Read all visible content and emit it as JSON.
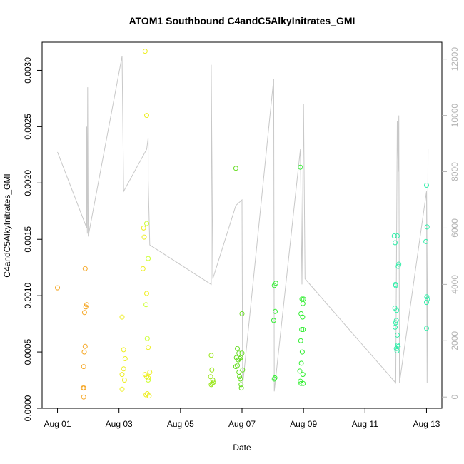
{
  "chart_data": {
    "type": "scatter",
    "title": "ATOM1 Southbound C4andC5AlkyInitrates_GMI",
    "xlabel": "Date",
    "ylabel": "C4andC5AlkyInitrates_GMI",
    "x_ticks": [
      "Aug 01",
      "Aug 03",
      "Aug 05",
      "Aug 07",
      "Aug 09",
      "Aug 11",
      "Aug 13"
    ],
    "x_tick_day_offsets": [
      0,
      2,
      4,
      6,
      8,
      10,
      12
    ],
    "xlim_days_from_aug01": [
      -0.5,
      12.5
    ],
    "ylim": [
      0,
      0.00325
    ],
    "y_ticks": [
      "0.0000",
      "0.0005",
      "0.0010",
      "0.0015",
      "0.0020",
      "0.0025",
      "0.0030"
    ],
    "y_tick_values": [
      0,
      0.0005,
      0.001,
      0.0015,
      0.002,
      0.0025,
      0.003
    ],
    "y2lim": [
      -400,
      12600
    ],
    "y2_ticks": [
      "0",
      "2000",
      "4000",
      "6000",
      "8000",
      "10000",
      "12000"
    ],
    "y2_tick_values": [
      0,
      2000,
      4000,
      6000,
      8000,
      10000,
      12000
    ],
    "scatter_series": [
      {
        "color": "#f5a623",
        "points": [
          [
            0.0,
            0.00107
          ],
          [
            0.9,
            0.00124
          ],
          [
            0.95,
            0.00092
          ],
          [
            0.92,
            0.0009
          ],
          [
            0.88,
            0.00085
          ],
          [
            0.9,
            0.00055
          ],
          [
            0.87,
            0.0005
          ],
          [
            0.85,
            0.00037
          ],
          [
            0.83,
            0.00018
          ],
          [
            0.86,
            0.00018
          ],
          [
            0.85,
            0.0001
          ]
        ]
      },
      {
        "color": "#eeee22",
        "points": [
          [
            2.85,
            0.00317
          ],
          [
            2.9,
            0.0026
          ],
          [
            2.8,
            0.0016
          ],
          [
            2.82,
            0.00152
          ],
          [
            2.78,
            0.00124
          ],
          [
            2.9,
            0.00102
          ],
          [
            2.95,
            0.00054
          ],
          [
            2.1,
            0.00081
          ],
          [
            2.15,
            0.00052
          ],
          [
            2.2,
            0.00044
          ],
          [
            2.15,
            0.00035
          ],
          [
            2.1,
            0.0003
          ],
          [
            2.18,
            0.00025
          ],
          [
            2.1,
            0.00017
          ],
          [
            2.85,
            0.0003
          ],
          [
            2.9,
            0.00028
          ],
          [
            2.95,
            0.00027
          ],
          [
            3.0,
            0.00032
          ],
          [
            2.88,
            0.00012
          ],
          [
            2.92,
            0.00013
          ],
          [
            2.98,
            0.00011
          ]
        ]
      },
      {
        "color": "#ccff33",
        "points": [
          [
            2.9,
            0.00164
          ],
          [
            2.95,
            0.00133
          ],
          [
            2.88,
            0.00092
          ],
          [
            2.92,
            0.00062
          ],
          [
            2.95,
            0.00025
          ]
        ]
      },
      {
        "color": "#99e61a",
        "points": [
          [
            5.0,
            0.00047
          ],
          [
            5.02,
            0.00034
          ],
          [
            4.98,
            0.00028
          ],
          [
            5.05,
            0.00025
          ],
          [
            5.0,
            0.00021
          ],
          [
            5.03,
            0.00022
          ],
          [
            5.07,
            0.00023
          ]
        ]
      },
      {
        "color": "#66dd22",
        "points": [
          [
            5.8,
            0.00213
          ],
          [
            5.85,
            0.00053
          ],
          [
            5.9,
            0.00049
          ],
          [
            5.82,
            0.00045
          ],
          [
            5.88,
            0.00043
          ],
          [
            5.8,
            0.00037
          ],
          [
            5.85,
            0.00038
          ],
          [
            5.9,
            0.00032
          ],
          [
            5.92,
            0.00028
          ],
          [
            5.95,
            0.00026
          ],
          [
            5.97,
            0.00021
          ],
          [
            5.98,
            0.00018
          ],
          [
            6.0,
            0.00084
          ],
          [
            6.0,
            0.00049
          ],
          [
            6.02,
            0.00034
          ],
          [
            5.96,
            0.00045
          ],
          [
            5.93,
            0.00044
          ]
        ]
      },
      {
        "color": "#33ee33",
        "points": [
          [
            7.05,
            0.00109
          ],
          [
            7.1,
            0.00111
          ],
          [
            7.08,
            0.00086
          ],
          [
            7.03,
            0.00078
          ],
          [
            7.07,
            0.00027
          ],
          [
            7.05,
            0.00026
          ],
          [
            7.9,
            0.00214
          ],
          [
            7.95,
            0.00097
          ],
          [
            8.0,
            0.00097
          ],
          [
            7.98,
            0.00093
          ],
          [
            7.92,
            0.00084
          ],
          [
            7.97,
            0.00081
          ],
          [
            7.94,
            0.0007
          ],
          [
            7.99,
            0.0007
          ],
          [
            7.91,
            0.0006
          ],
          [
            7.96,
            0.0005
          ],
          [
            7.93,
            0.0004
          ],
          [
            7.88,
            0.00033
          ],
          [
            7.98,
            0.0003
          ],
          [
            7.9,
            0.00024
          ],
          [
            7.92,
            0.00022
          ],
          [
            7.99,
            0.00022
          ]
        ]
      },
      {
        "color": "#33eeaa",
        "points": [
          [
            10.95,
            0.00153
          ],
          [
            11.05,
            0.00153
          ],
          [
            10.98,
            0.00147
          ],
          [
            11.1,
            0.00128
          ],
          [
            11.08,
            0.00126
          ],
          [
            10.99,
            0.0011
          ],
          [
            11.0,
            0.00109
          ],
          [
            11.03,
            0.00087
          ],
          [
            10.97,
            0.00089
          ],
          [
            11.02,
            0.00078
          ],
          [
            11.0,
            0.00076
          ],
          [
            10.98,
            0.00072
          ],
          [
            11.05,
            0.00065
          ],
          [
            11.02,
            0.00053
          ],
          [
            11.06,
            0.00056
          ],
          [
            11.04,
            0.00051
          ],
          [
            11.08,
            0.00055
          ],
          [
            12.0,
            0.00198
          ],
          [
            12.02,
            0.00161
          ],
          [
            11.98,
            0.00148
          ],
          [
            12.03,
            0.00097
          ],
          [
            12.0,
            0.00094
          ],
          [
            12.01,
            0.00099
          ],
          [
            12.0,
            0.00071
          ]
        ]
      }
    ],
    "line_color": "#c8c8c8",
    "line_series_note": "",
    "line_points": [
      [
        0,
        8700
      ],
      [
        0.95,
        6000
      ],
      [
        0.95,
        9600
      ],
      [
        0.97,
        5800
      ],
      [
        0.98,
        11000
      ],
      [
        1.0,
        5700
      ],
      [
        2.1,
        12100
      ],
      [
        2.15,
        7300
      ],
      [
        2.9,
        8800
      ],
      [
        2.95,
        9200
      ],
      [
        2.95,
        7700
      ],
      [
        3.0,
        5400
      ],
      [
        5.0,
        4000
      ],
      [
        5.0,
        11800
      ],
      [
        5.05,
        4200
      ],
      [
        5.8,
        6800
      ],
      [
        6.0,
        7000
      ],
      [
        6.02,
        400
      ],
      [
        7.03,
        11300
      ],
      [
        7.05,
        200
      ],
      [
        7.9,
        8800
      ],
      [
        7.95,
        4000
      ],
      [
        8.0,
        10400
      ],
      [
        8.05,
        4200
      ],
      [
        11.0,
        500
      ],
      [
        11.05,
        9800
      ],
      [
        11.08,
        8000
      ],
      [
        11.1,
        10000
      ],
      [
        11.12,
        500
      ],
      [
        12.0,
        7300
      ],
      [
        12.02,
        500
      ],
      [
        12.05,
        8800
      ]
    ]
  }
}
